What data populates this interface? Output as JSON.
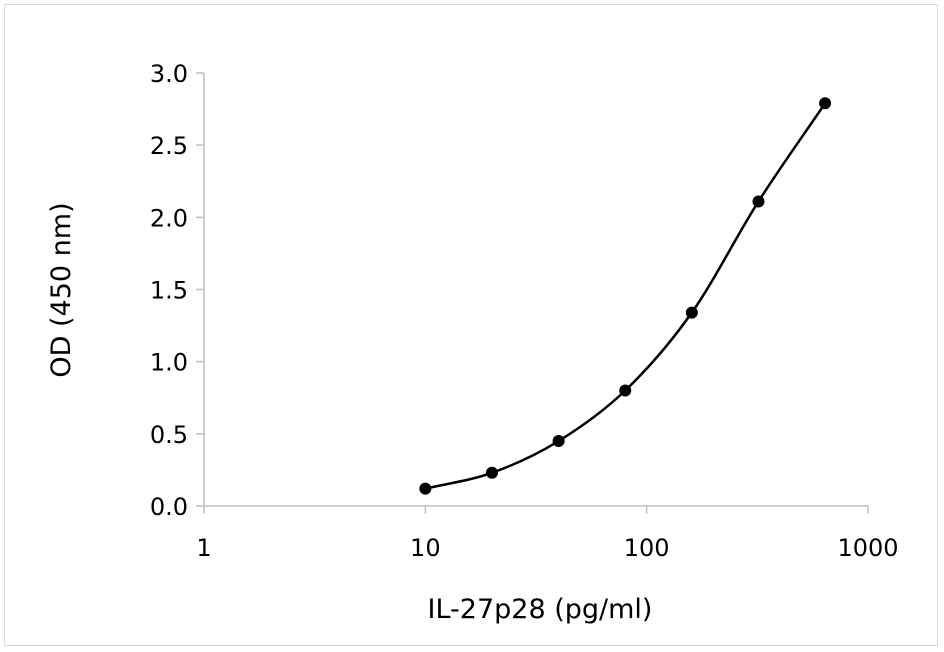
{
  "chart_data": {
    "type": "scatter",
    "title": "",
    "xlabel": "IL-27p28 (pg/ml)",
    "ylabel": "OD (450 nm)",
    "x_scale": "log",
    "xlim": [
      1,
      1000
    ],
    "ylim": [
      0,
      3.0
    ],
    "x_ticks": [
      "1",
      "10",
      "100",
      "1000"
    ],
    "y_ticks": [
      "0.0",
      "0.5",
      "1.0",
      "1.5",
      "2.0",
      "2.5",
      "3.0"
    ],
    "grid": false,
    "legend": "none",
    "series": [
      {
        "x": [
          10,
          20,
          40,
          80,
          160,
          320,
          640
        ],
        "y": [
          0.12,
          0.23,
          0.45,
          0.8,
          1.34,
          2.11,
          2.79
        ],
        "marker": "circle",
        "line": "smooth",
        "color": "#000000"
      }
    ]
  }
}
